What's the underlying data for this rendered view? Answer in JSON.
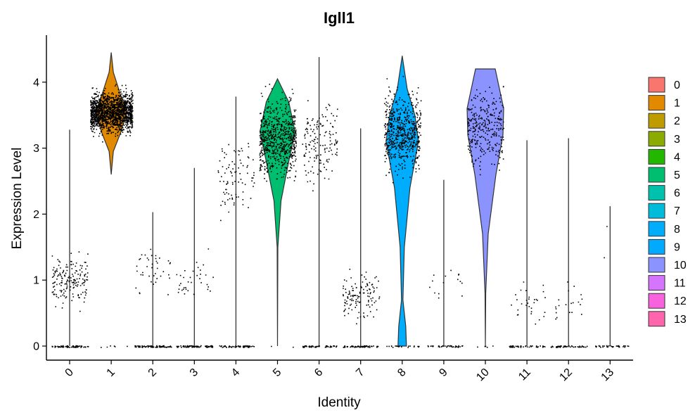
{
  "chart_data": {
    "type": "violin",
    "title": "Igll1",
    "xlabel": "Identity",
    "ylabel": "Expression Level",
    "ylim": [
      0,
      4.5
    ],
    "yticks": [
      0,
      1,
      2,
      3,
      4
    ],
    "categories": [
      "0",
      "1",
      "2",
      "3",
      "4",
      "5",
      "6",
      "7",
      "8",
      "9",
      "10",
      "11",
      "12",
      "13"
    ],
    "colors": [
      "#F8766D",
      "#E18A00",
      "#BE9C00",
      "#8CAB00",
      "#24B700",
      "#00BE70",
      "#00C1AB",
      "#00BBDA",
      "#00ACFC",
      "#01A9FF",
      "#8B93FF",
      "#D575FE",
      "#F962DD",
      "#FF65AC"
    ],
    "max_values": [
      3.28,
      4.45,
      2.03,
      2.7,
      3.78,
      4.05,
      4.38,
      3.3,
      4.4,
      2.52,
      4.2,
      3.12,
      3.15,
      2.12
    ],
    "nonzero_cluster_center": [
      1.0,
      3.55,
      1.15,
      1.0,
      2.6,
      3.15,
      3.1,
      0.75,
      3.25,
      0.9,
      3.3,
      0.65,
      0.7,
      1.6
    ],
    "point_counts_zero": [
      70,
      6,
      80,
      75,
      55,
      2,
      50,
      65,
      20,
      40,
      5,
      45,
      50,
      40
    ],
    "point_counts_nonzero": [
      170,
      1600,
      40,
      35,
      90,
      700,
      150,
      120,
      600,
      15,
      300,
      30,
      20,
      2
    ],
    "legend": {
      "position": "right",
      "entries": [
        "0",
        "1",
        "2",
        "3",
        "4",
        "5",
        "6",
        "7",
        "8",
        "9",
        "10",
        "11",
        "12",
        "13"
      ]
    }
  }
}
